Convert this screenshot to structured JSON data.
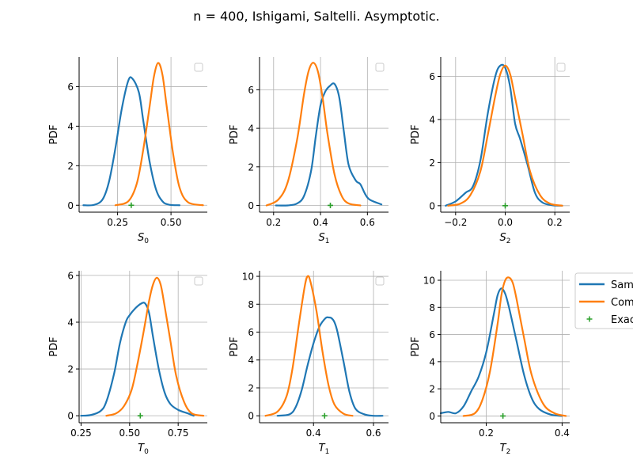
{
  "figure": {
    "title": "n = 400, Ishigami, Saltelli. Asymptotic.",
    "legend": {
      "entries": [
        {
          "label": "Sam",
          "color": "#1f77b4",
          "kind": "line"
        },
        {
          "label": "Com",
          "color": "#ff7f0e",
          "kind": "line"
        },
        {
          "label": "Exac",
          "color": "#2ca02c",
          "kind": "plus"
        }
      ]
    }
  },
  "chart_data": [
    {
      "type": "line",
      "xlabel": "S",
      "xlabel_sub": "0",
      "ylabel": "PDF",
      "xlim": [
        0.07,
        0.67
      ],
      "ylim": [
        -0.35,
        7.5
      ],
      "xticks": [
        0.25,
        0.5
      ],
      "xticklabels": [
        "0.25",
        "0.50"
      ],
      "yticks": [
        0,
        2,
        4,
        6
      ],
      "yticklabels": [
        "0",
        "2",
        "4",
        "6"
      ],
      "grid": true,
      "series": [
        {
          "color": "#1f77b4",
          "x": [
            0.09,
            0.14,
            0.18,
            0.21,
            0.24,
            0.27,
            0.3,
            0.32,
            0.35,
            0.37,
            0.4,
            0.43,
            0.46,
            0.49,
            0.54
          ],
          "y": [
            0.0,
            0.02,
            0.3,
            1.2,
            2.9,
            4.9,
            6.3,
            6.4,
            5.7,
            4.3,
            2.2,
            0.8,
            0.2,
            0.03,
            0.0
          ]
        },
        {
          "color": "#ff7f0e",
          "x": [
            0.24,
            0.3,
            0.34,
            0.37,
            0.4,
            0.42,
            0.44,
            0.46,
            0.48,
            0.51,
            0.54,
            0.58,
            0.65
          ],
          "y": [
            0.0,
            0.2,
            1.1,
            2.8,
            5.0,
            6.5,
            7.2,
            6.6,
            5.0,
            2.6,
            0.9,
            0.15,
            0.0
          ]
        }
      ],
      "exact": {
        "x": 0.314,
        "y": 0
      }
    },
    {
      "type": "line",
      "xlabel": "S",
      "xlabel_sub": "1",
      "ylabel": "PDF",
      "xlim": [
        0.14,
        0.69
      ],
      "ylim": [
        -0.35,
        7.7
      ],
      "xticks": [
        0.2,
        0.4,
        0.6
      ],
      "xticklabels": [
        "0.2",
        "0.4",
        "0.6"
      ],
      "yticks": [
        0,
        2,
        4,
        6
      ],
      "yticklabels": [
        "0",
        "2",
        "4",
        "6"
      ],
      "grid": true,
      "series": [
        {
          "color": "#1f77b4",
          "x": [
            0.21,
            0.26,
            0.3,
            0.33,
            0.36,
            0.38,
            0.4,
            0.42,
            0.44,
            0.46,
            0.48,
            0.5,
            0.52,
            0.55,
            0.57,
            0.59,
            0.61,
            0.66
          ],
          "y": [
            0.0,
            0.0,
            0.1,
            0.5,
            1.8,
            3.6,
            5.2,
            5.9,
            6.2,
            6.3,
            5.6,
            3.8,
            2.1,
            1.3,
            1.1,
            0.6,
            0.3,
            0.05
          ]
        },
        {
          "color": "#ff7f0e",
          "x": [
            0.17,
            0.22,
            0.26,
            0.3,
            0.33,
            0.35,
            0.37,
            0.39,
            0.41,
            0.43,
            0.46,
            0.49,
            0.52,
            0.57
          ],
          "y": [
            0.0,
            0.3,
            1.2,
            3.4,
            5.8,
            7.0,
            7.4,
            6.9,
            5.5,
            3.7,
            1.6,
            0.5,
            0.1,
            0.0
          ]
        }
      ],
      "exact": {
        "x": 0.442,
        "y": 0
      }
    },
    {
      "type": "line",
      "xlabel": "S",
      "xlabel_sub": "2",
      "ylabel": "PDF",
      "xlim": [
        -0.26,
        0.26
      ],
      "ylim": [
        -0.3,
        6.9
      ],
      "xticks": [
        -0.2,
        0.0,
        0.2
      ],
      "xticklabels": [
        "−0.2",
        "0.0",
        "0.2"
      ],
      "yticks": [
        0,
        2,
        4,
        6
      ],
      "yticklabels": [
        "0",
        "2",
        "4",
        "6"
      ],
      "grid": true,
      "series": [
        {
          "color": "#1f77b4",
          "x": [
            -0.24,
            -0.2,
            -0.16,
            -0.13,
            -0.1,
            -0.07,
            -0.04,
            -0.02,
            0.0,
            0.02,
            0.04,
            0.06,
            0.09,
            0.12,
            0.15,
            0.19,
            0.23
          ],
          "y": [
            0.0,
            0.2,
            0.6,
            0.9,
            2.1,
            4.3,
            6.0,
            6.5,
            6.4,
            5.5,
            3.8,
            3.1,
            1.9,
            0.6,
            0.15,
            0.02,
            0.0
          ]
        },
        {
          "color": "#ff7f0e",
          "x": [
            -0.23,
            -0.18,
            -0.14,
            -0.1,
            -0.07,
            -0.04,
            -0.02,
            0.0,
            0.02,
            0.04,
            0.07,
            0.1,
            0.14,
            0.18,
            0.23
          ],
          "y": [
            0.0,
            0.1,
            0.5,
            1.6,
            3.3,
            5.1,
            6.1,
            6.5,
            6.1,
            5.0,
            3.3,
            1.6,
            0.5,
            0.1,
            0.0
          ]
        }
      ],
      "exact": {
        "x": 0.0,
        "y": 0
      }
    },
    {
      "type": "line",
      "xlabel": "T",
      "xlabel_sub": "0",
      "ylabel": "PDF",
      "xlim": [
        0.24,
        0.9
      ],
      "ylim": [
        -0.3,
        6.2
      ],
      "xticks": [
        0.25,
        0.5,
        0.75
      ],
      "xticklabels": [
        "0.25",
        "0.50",
        "0.75"
      ],
      "yticks": [
        0,
        2,
        4,
        6
      ],
      "yticklabels": [
        "0",
        "2",
        "4",
        "6"
      ],
      "grid": true,
      "series": [
        {
          "color": "#1f77b4",
          "x": [
            0.25,
            0.3,
            0.35,
            0.38,
            0.42,
            0.45,
            0.48,
            0.5,
            0.53,
            0.56,
            0.58,
            0.6,
            0.62,
            0.65,
            0.68,
            0.71,
            0.75,
            0.8,
            0.83
          ],
          "y": [
            0.0,
            0.03,
            0.2,
            0.6,
            1.8,
            3.1,
            4.0,
            4.3,
            4.6,
            4.8,
            4.8,
            4.4,
            3.4,
            2.0,
            1.0,
            0.5,
            0.25,
            0.1,
            0.0
          ]
        },
        {
          "color": "#ff7f0e",
          "x": [
            0.38,
            0.43,
            0.47,
            0.51,
            0.54,
            0.57,
            0.6,
            0.62,
            0.64,
            0.66,
            0.68,
            0.71,
            0.74,
            0.78,
            0.82,
            0.88
          ],
          "y": [
            0.0,
            0.1,
            0.4,
            1.1,
            2.2,
            3.5,
            4.9,
            5.6,
            5.9,
            5.6,
            4.7,
            3.2,
            1.7,
            0.6,
            0.1,
            0.0
          ]
        }
      ],
      "exact": {
        "x": 0.555,
        "y": 0
      }
    },
    {
      "type": "line",
      "xlabel": "T",
      "xlabel_sub": "1",
      "ylabel": "PDF",
      "xlim": [
        0.22,
        0.65
      ],
      "ylim": [
        -0.5,
        10.4
      ],
      "xticks": [
        0.4,
        0.6
      ],
      "xticklabels": [
        "0.4",
        "0.6"
      ],
      "yticks": [
        0,
        2,
        4,
        6,
        8,
        10
      ],
      "yticklabels": [
        "0",
        "2",
        "4",
        "6",
        "8",
        "10"
      ],
      "grid": true,
      "series": [
        {
          "color": "#1f77b4",
          "x": [
            0.28,
            0.32,
            0.34,
            0.36,
            0.38,
            0.4,
            0.42,
            0.44,
            0.45,
            0.46,
            0.47,
            0.48,
            0.5,
            0.52,
            0.54,
            0.57,
            0.6,
            0.63
          ],
          "y": [
            0.0,
            0.1,
            0.6,
            1.8,
            3.6,
            5.2,
            6.4,
            7.0,
            7.05,
            7.0,
            6.7,
            6.0,
            3.9,
            1.7,
            0.5,
            0.1,
            0.0,
            0.0
          ]
        },
        {
          "color": "#ff7f0e",
          "x": [
            0.24,
            0.28,
            0.31,
            0.33,
            0.35,
            0.37,
            0.38,
            0.39,
            0.41,
            0.43,
            0.45,
            0.47,
            0.5,
            0.53
          ],
          "y": [
            0.0,
            0.3,
            1.4,
            3.4,
            6.4,
            9.2,
            10.0,
            9.6,
            7.5,
            4.6,
            2.2,
            0.8,
            0.15,
            0.0
          ]
        }
      ],
      "exact": {
        "x": 0.437,
        "y": 0
      }
    },
    {
      "type": "line",
      "xlabel": "T",
      "xlabel_sub": "2",
      "ylabel": "PDF",
      "xlim": [
        0.08,
        0.42
      ],
      "ylim": [
        -0.5,
        10.7
      ],
      "xticks": [
        0.2,
        0.4
      ],
      "xticklabels": [
        "0.2",
        "0.4"
      ],
      "yticks": [
        0,
        2,
        4,
        6,
        8,
        10
      ],
      "yticklabels": [
        "0",
        "2",
        "4",
        "6",
        "8",
        "10"
      ],
      "grid": true,
      "series": [
        {
          "color": "#1f77b4",
          "x": [
            0.08,
            0.1,
            0.12,
            0.14,
            0.16,
            0.18,
            0.2,
            0.22,
            0.23,
            0.24,
            0.25,
            0.26,
            0.28,
            0.3,
            0.32,
            0.34,
            0.37,
            0.4
          ],
          "y": [
            0.2,
            0.3,
            0.2,
            0.7,
            1.8,
            2.9,
            4.7,
            7.5,
            8.9,
            9.4,
            9.0,
            8.0,
            5.5,
            3.0,
            1.3,
            0.5,
            0.1,
            0.0
          ]
        },
        {
          "color": "#ff7f0e",
          "x": [
            0.14,
            0.17,
            0.19,
            0.21,
            0.23,
            0.24,
            0.25,
            0.26,
            0.27,
            0.28,
            0.3,
            0.32,
            0.35,
            0.38,
            0.41
          ],
          "y": [
            0.0,
            0.2,
            1.2,
            3.3,
            6.8,
            8.9,
            10.0,
            10.2,
            9.8,
            8.6,
            5.7,
            3.0,
            0.9,
            0.2,
            0.0
          ]
        }
      ],
      "exact": {
        "x": 0.244,
        "y": 0
      }
    }
  ]
}
